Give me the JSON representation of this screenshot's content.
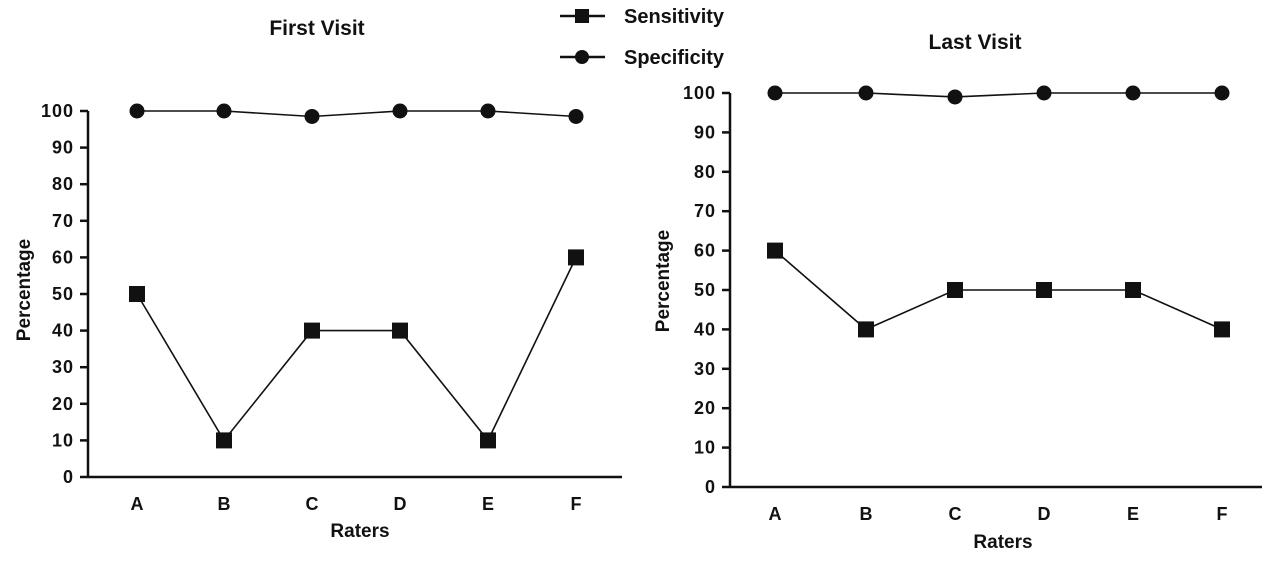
{
  "legend": {
    "placement": "top-center",
    "entries": [
      {
        "name": "Sensitivity",
        "marker": "square"
      },
      {
        "name": "Specificity",
        "marker": "circle"
      }
    ]
  },
  "chart_data": [
    {
      "type": "line",
      "title": "First Visit",
      "xlabel": "Raters",
      "ylabel": "Percentage",
      "categories": [
        "A",
        "B",
        "C",
        "D",
        "E",
        "F"
      ],
      "ylim": [
        0,
        100
      ],
      "yticks": [
        0,
        10,
        20,
        30,
        40,
        50,
        60,
        70,
        80,
        90,
        100
      ],
      "grid": false,
      "series": [
        {
          "name": "Sensitivity",
          "marker": "square",
          "values": [
            50,
            10,
            40,
            40,
            10,
            60
          ]
        },
        {
          "name": "Specificity",
          "marker": "circle",
          "values": [
            100,
            100,
            98.5,
            100,
            100,
            98.5
          ]
        }
      ]
    },
    {
      "type": "line",
      "title": "Last Visit",
      "xlabel": "Raters",
      "ylabel": "Percentage",
      "categories": [
        "A",
        "B",
        "C",
        "D",
        "E",
        "F"
      ],
      "ylim": [
        0,
        100
      ],
      "yticks": [
        0,
        10,
        20,
        30,
        40,
        50,
        60,
        70,
        80,
        90,
        100
      ],
      "grid": false,
      "series": [
        {
          "name": "Sensitivity",
          "marker": "square",
          "values": [
            60,
            40,
            50,
            50,
            50,
            40
          ]
        },
        {
          "name": "Specificity",
          "marker": "circle",
          "values": [
            100,
            100,
            99,
            100,
            100,
            100
          ]
        }
      ]
    }
  ]
}
